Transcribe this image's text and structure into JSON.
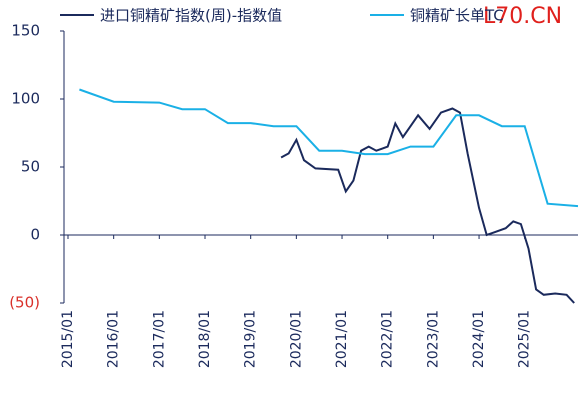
{
  "chart_data": {
    "type": "line",
    "watermark": "L70.CN",
    "ylim": [
      -50,
      150
    ],
    "yticks": [
      150,
      100,
      50,
      0,
      {
        "value": -50,
        "label": "(50)"
      }
    ],
    "xlim": [
      "2015/01",
      "2026/03"
    ],
    "xticks": [
      "2015/01",
      "2016/01",
      "2017/01",
      "2018/01",
      "2019/01",
      "2020/01",
      "2021/01",
      "2022/01",
      "2023/01",
      "2024/01",
      "2025/01"
    ],
    "series": [
      {
        "name": "进口铜精矿指数(周)-指数值",
        "color": "#1b2a5c",
        "x": [
          "2019/09",
          "2019/11",
          "2020/01",
          "2020/03",
          "2020/06",
          "2020/12",
          "2021/02",
          "2021/04",
          "2021/06",
          "2021/08",
          "2021/10",
          "2022/01",
          "2022/03",
          "2022/05",
          "2022/09",
          "2022/12",
          "2023/03",
          "2023/06",
          "2023/08",
          "2023/10",
          "2024/01",
          "2024/03",
          "2024/05",
          "2024/08",
          "2024/10",
          "2024/12",
          "2025/02",
          "2025/04",
          "2025/06",
          "2025/09",
          "2025/12",
          "2026/02"
        ],
        "values": [
          57,
          60,
          70,
          55,
          49,
          48,
          32,
          40,
          62,
          65,
          62,
          65,
          82,
          72,
          88,
          78,
          90,
          93,
          90,
          60,
          20,
          0,
          2,
          5,
          10,
          8,
          -10,
          -40,
          -44,
          -43,
          -44,
          -50
        ]
      },
      {
        "name": "铜精矿长单TC",
        "color": "#1ab0e6",
        "x": [
          "2015/04",
          "2016/01",
          "2017/01",
          "2017/07",
          "2018/01",
          "2018/07",
          "2019/01",
          "2019/07",
          "2020/01",
          "2020/07",
          "2021/01",
          "2021/07",
          "2022/01",
          "2022/07",
          "2023/01",
          "2023/07",
          "2024/01",
          "2024/07",
          "2025/01",
          "2025/07",
          "2026/03"
        ],
        "values": [
          107,
          98,
          97.35,
          92.5,
          92.5,
          82.25,
          82.25,
          80,
          80,
          62,
          62,
          59.5,
          59.5,
          65,
          65,
          88,
          88,
          80,
          80,
          23,
          21.25
        ]
      }
    ]
  }
}
